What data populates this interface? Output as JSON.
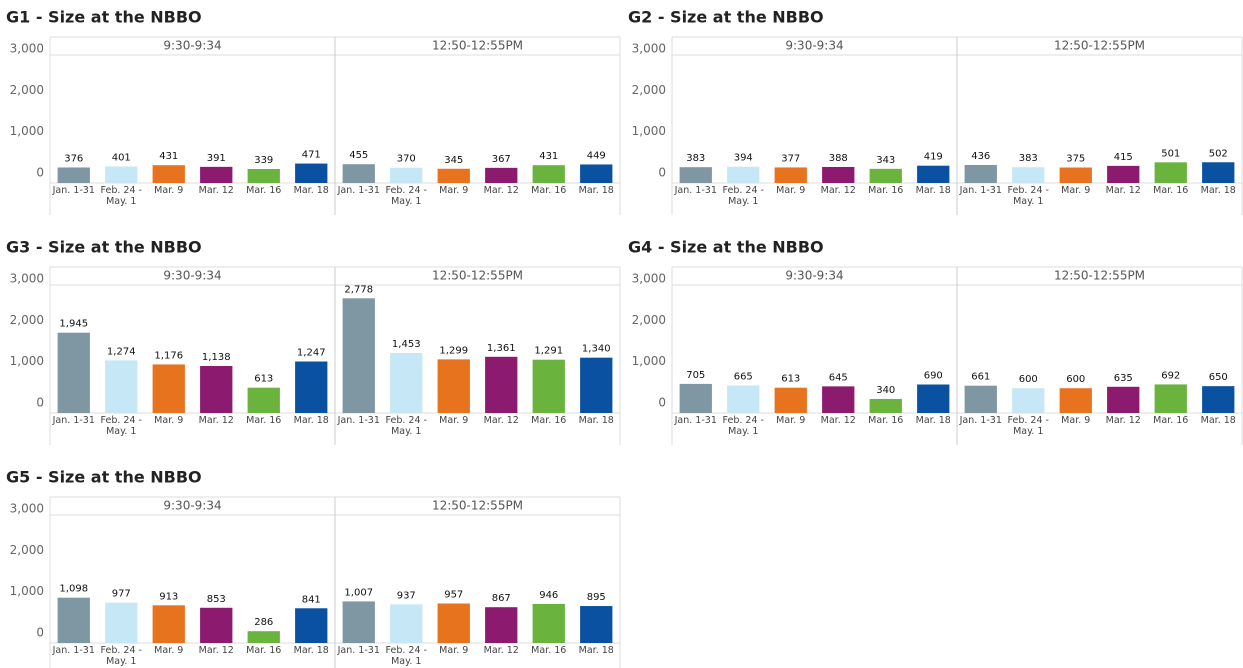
{
  "chart_data": [
    {
      "type": "bar",
      "title": "G1 - Size at the NBBO",
      "categories": [
        "Jan. 1-31",
        "Feb. 24 - May. 1",
        "Mar. 9",
        "Mar. 12",
        "Mar. 16",
        "Mar. 18"
      ],
      "colors": [
        "#7e97a3",
        "#c6e7f6",
        "#e8731f",
        "#8c1a6e",
        "#6ab43e",
        "#0a51a1"
      ],
      "ylim": [
        0,
        3100
      ],
      "yticks": [
        0,
        {
          "value": 1000,
          "label": "1,000"
        },
        {
          "value": 2000,
          "label": "2,000"
        },
        {
          "value": 3000,
          "label": "3,000"
        }
      ],
      "panels": [
        {
          "name": "9:30-9:34",
          "values": [
            376,
            401,
            431,
            391,
            339,
            471
          ],
          "value_labels": [
            "376",
            "401",
            "431",
            "391",
            "339",
            "471"
          ]
        },
        {
          "name": "12:50-12:55PM",
          "values": [
            455,
            370,
            345,
            367,
            431,
            449
          ],
          "value_labels": [
            "455",
            "370",
            "345",
            "367",
            "431",
            "449"
          ]
        }
      ]
    },
    {
      "type": "bar",
      "title": "G2 - Size at the NBBO",
      "categories": [
        "Jan. 1-31",
        "Feb. 24 - May. 1",
        "Mar. 9",
        "Mar. 12",
        "Mar. 16",
        "Mar. 18"
      ],
      "colors": [
        "#7e97a3",
        "#c6e7f6",
        "#e8731f",
        "#8c1a6e",
        "#6ab43e",
        "#0a51a1"
      ],
      "ylim": [
        0,
        3100
      ],
      "yticks": [
        0,
        {
          "value": 1000,
          "label": "1,000"
        },
        {
          "value": 2000,
          "label": "2,000"
        },
        {
          "value": 3000,
          "label": "3,000"
        }
      ],
      "panels": [
        {
          "name": "9:30-9:34",
          "values": [
            383,
            394,
            377,
            388,
            343,
            419
          ],
          "value_labels": [
            "383",
            "394",
            "377",
            "388",
            "343",
            "419"
          ]
        },
        {
          "name": "12:50-12:55PM",
          "values": [
            436,
            383,
            375,
            415,
            501,
            502
          ],
          "value_labels": [
            "436",
            "383",
            "375",
            "415",
            "501",
            "502"
          ]
        }
      ]
    },
    {
      "type": "bar",
      "title": "G3 - Size at the NBBO",
      "categories": [
        "Jan. 1-31",
        "Feb. 24 - May. 1",
        "Mar. 9",
        "Mar. 12",
        "Mar. 16",
        "Mar. 18"
      ],
      "colors": [
        "#7e97a3",
        "#c6e7f6",
        "#e8731f",
        "#8c1a6e",
        "#6ab43e",
        "#0a51a1"
      ],
      "ylim": [
        0,
        3100
      ],
      "yticks": [
        0,
        {
          "value": 1000,
          "label": "1,000"
        },
        {
          "value": 2000,
          "label": "2,000"
        },
        {
          "value": 3000,
          "label": "3,000"
        }
      ],
      "panels": [
        {
          "name": "9:30-9:34",
          "values": [
            1945,
            1274,
            1176,
            1138,
            613,
            1247
          ],
          "value_labels": [
            "1,945",
            "1,274",
            "1,176",
            "1,138",
            "613",
            "1,247"
          ]
        },
        {
          "name": "12:50-12:55PM",
          "values": [
            2778,
            1453,
            1299,
            1361,
            1291,
            1340
          ],
          "value_labels": [
            "2,778",
            "1,453",
            "1,299",
            "1,361",
            "1,291",
            "1,340"
          ]
        }
      ]
    },
    {
      "type": "bar",
      "title": "G4 - Size at the NBBO",
      "categories": [
        "Jan. 1-31",
        "Feb. 24 - May. 1",
        "Mar. 9",
        "Mar. 12",
        "Mar. 16",
        "Mar. 18"
      ],
      "colors": [
        "#7e97a3",
        "#c6e7f6",
        "#e8731f",
        "#8c1a6e",
        "#6ab43e",
        "#0a51a1"
      ],
      "ylim": [
        0,
        3100
      ],
      "yticks": [
        0,
        {
          "value": 1000,
          "label": "1,000"
        },
        {
          "value": 2000,
          "label": "2,000"
        },
        {
          "value": 3000,
          "label": "3,000"
        }
      ],
      "panels": [
        {
          "name": "9:30-9:34",
          "values": [
            705,
            665,
            613,
            645,
            340,
            690
          ],
          "value_labels": [
            "705",
            "665",
            "613",
            "645",
            "340",
            "690"
          ]
        },
        {
          "name": "12:50-12:55PM",
          "values": [
            661,
            600,
            600,
            635,
            692,
            650
          ],
          "value_labels": [
            "661",
            "600",
            "600",
            "635",
            "692",
            "650"
          ]
        }
      ]
    },
    {
      "type": "bar",
      "title": "G5 - Size at the NBBO",
      "categories": [
        "Jan. 1-31",
        "Feb. 24 - May. 1",
        "Mar. 9",
        "Mar. 12",
        "Mar. 16",
        "Mar. 18"
      ],
      "colors": [
        "#7e97a3",
        "#c6e7f6",
        "#e8731f",
        "#8c1a6e",
        "#6ab43e",
        "#0a51a1"
      ],
      "ylim": [
        0,
        3100
      ],
      "yticks": [
        0,
        {
          "value": 1000,
          "label": "1,000"
        },
        {
          "value": 2000,
          "label": "2,000"
        },
        {
          "value": 3000,
          "label": "3,000"
        }
      ],
      "panels": [
        {
          "name": "9:30-9:34",
          "values": [
            1098,
            977,
            913,
            853,
            286,
            841
          ],
          "value_labels": [
            "1,098",
            "977",
            "913",
            "853",
            "286",
            "841"
          ]
        },
        {
          "name": "12:50-12:55PM",
          "values": [
            1007,
            937,
            957,
            867,
            946,
            895
          ],
          "value_labels": [
            "1,007",
            "937",
            "957",
            "867",
            "946",
            "895"
          ]
        }
      ]
    }
  ]
}
